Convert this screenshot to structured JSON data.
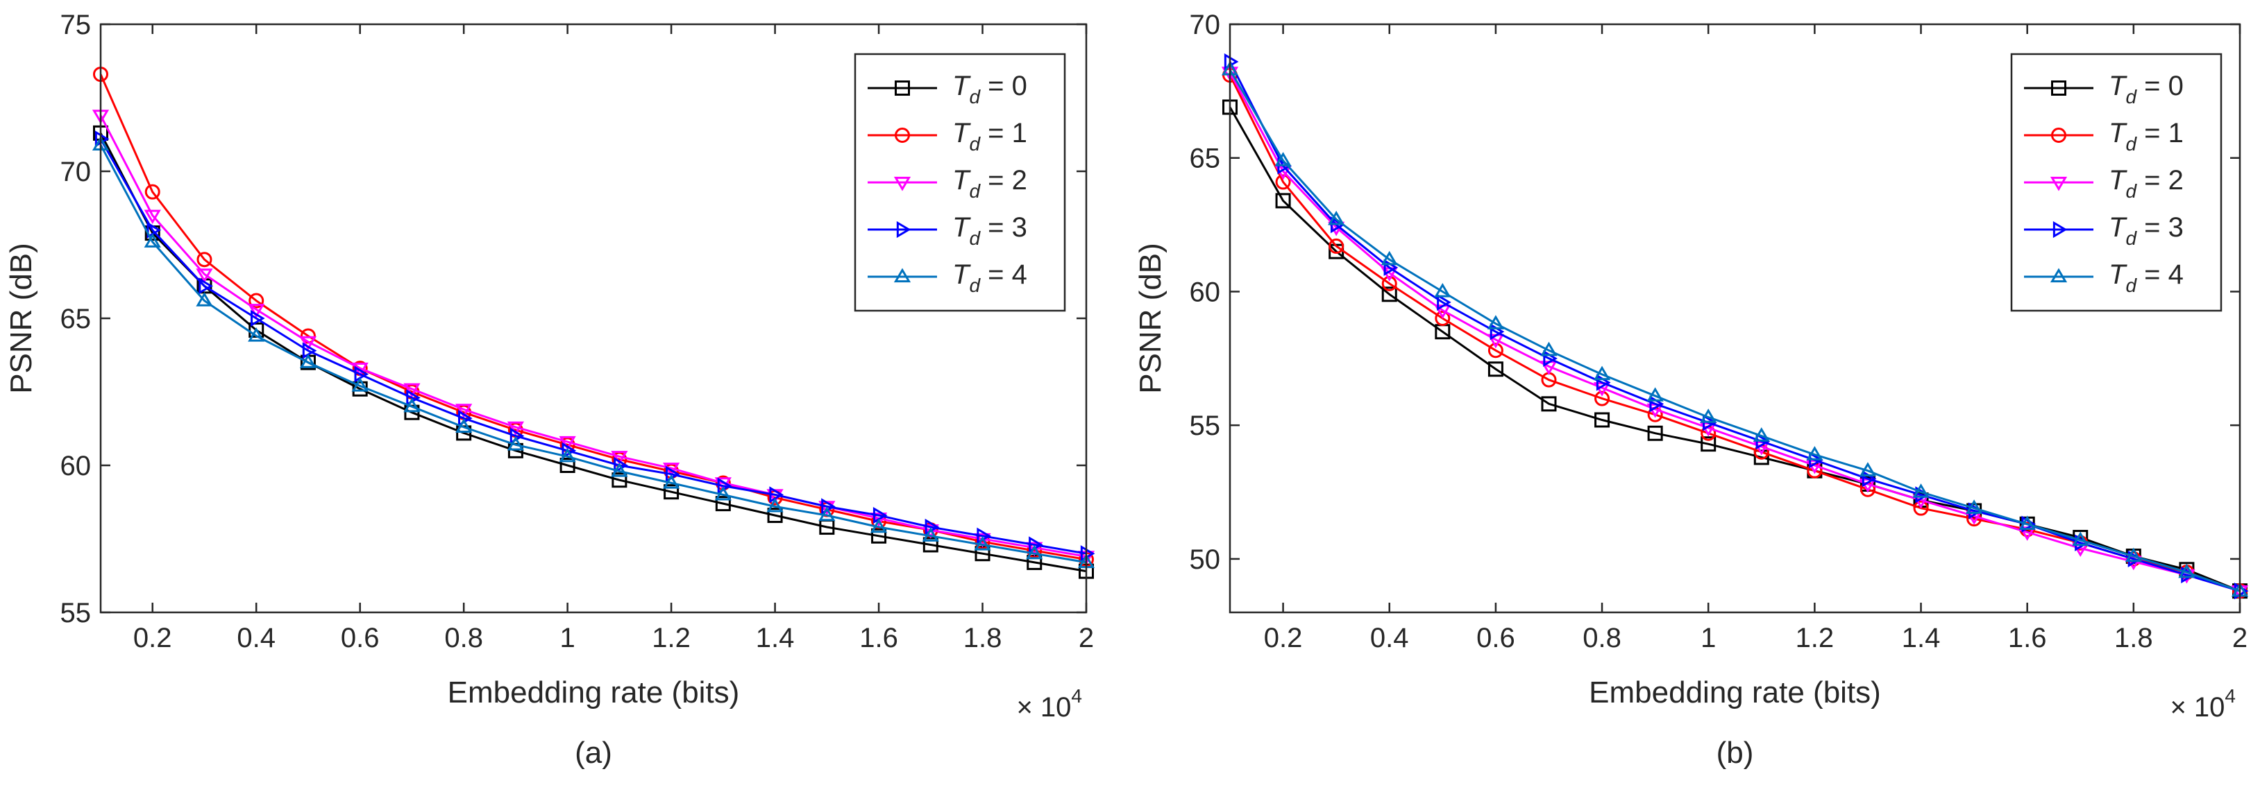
{
  "chart_data": [
    {
      "type": "line",
      "panel": "a",
      "caption": "(a)",
      "xlabel": "Embedding rate (bits)",
      "ylabel": "PSNR (dB)",
      "x_multiplier_label": "× 10",
      "x_multiplier_exp": "4",
      "xlim": [
        0.1,
        2.0
      ],
      "ylim": [
        55,
        75
      ],
      "xticks": [
        0.2,
        0.4,
        0.6,
        0.8,
        1,
        1.2,
        1.4,
        1.6,
        1.8,
        2
      ],
      "xtick_labels": [
        "0.2",
        "0.4",
        "0.6",
        "0.8",
        "1",
        "1.2",
        "1.4",
        "1.6",
        "1.8",
        "2"
      ],
      "yticks": [
        55,
        60,
        65,
        70,
        75
      ],
      "ytick_labels": [
        "55",
        "60",
        "65",
        "70",
        "75"
      ],
      "legend_position": "top-right",
      "x": [
        0.1,
        0.2,
        0.3,
        0.4,
        0.5,
        0.6,
        0.7,
        0.8,
        0.9,
        1.0,
        1.1,
        1.2,
        1.3,
        1.4,
        1.5,
        1.6,
        1.7,
        1.8,
        1.9,
        2.0
      ],
      "series": [
        {
          "name": "Td = 0",
          "label_main": "T",
          "label_sub": "d",
          "label_value": " = 0",
          "color": "#000000",
          "marker": "square",
          "values": [
            71.3,
            67.9,
            66.1,
            64.6,
            63.5,
            62.6,
            61.8,
            61.1,
            60.5,
            60.0,
            59.5,
            59.1,
            58.7,
            58.3,
            57.9,
            57.6,
            57.3,
            57.0,
            56.7,
            56.4
          ]
        },
        {
          "name": "Td = 1",
          "label_main": "T",
          "label_sub": "d",
          "label_value": " = 1",
          "color": "#ff0000",
          "marker": "circle",
          "values": [
            73.3,
            69.3,
            67.0,
            65.6,
            64.4,
            63.3,
            62.5,
            61.8,
            61.2,
            60.7,
            60.2,
            59.8,
            59.4,
            58.9,
            58.5,
            58.1,
            57.8,
            57.4,
            57.1,
            56.8
          ]
        },
        {
          "name": "Td = 2",
          "label_main": "T",
          "label_sub": "d",
          "label_value": " = 2",
          "color": "#ff00ff",
          "marker": "triangle-down",
          "values": [
            71.9,
            68.5,
            66.5,
            65.3,
            64.2,
            63.3,
            62.6,
            61.9,
            61.3,
            60.8,
            60.3,
            59.9,
            59.4,
            59.0,
            58.6,
            58.2,
            57.8,
            57.5,
            57.2,
            56.9
          ]
        },
        {
          "name": "Td = 3",
          "label_main": "T",
          "label_sub": "d",
          "label_value": " = 3",
          "color": "#0000ff",
          "marker": "triangle-right",
          "values": [
            71.1,
            68.0,
            66.1,
            65.0,
            63.9,
            63.1,
            62.3,
            61.6,
            61.0,
            60.5,
            60.0,
            59.7,
            59.3,
            59.0,
            58.6,
            58.3,
            57.9,
            57.6,
            57.3,
            57.0
          ]
        },
        {
          "name": "Td = 4",
          "label_main": "T",
          "label_sub": "d",
          "label_value": " = 4",
          "color": "#0072bd",
          "marker": "triangle-up",
          "values": [
            70.9,
            67.6,
            65.6,
            64.4,
            63.5,
            62.7,
            62.0,
            61.3,
            60.7,
            60.3,
            59.8,
            59.4,
            59.0,
            58.6,
            58.3,
            57.9,
            57.6,
            57.3,
            57.0,
            56.7
          ]
        }
      ]
    },
    {
      "type": "line",
      "panel": "b",
      "caption": "(b)",
      "xlabel": "Embedding rate (bits)",
      "ylabel": "PSNR (dB)",
      "x_multiplier_label": "× 10",
      "x_multiplier_exp": "4",
      "xlim": [
        0.1,
        2.0
      ],
      "ylim": [
        48,
        70
      ],
      "xticks": [
        0.2,
        0.4,
        0.6,
        0.8,
        1,
        1.2,
        1.4,
        1.6,
        1.8,
        2
      ],
      "xtick_labels": [
        "0.2",
        "0.4",
        "0.6",
        "0.8",
        "1",
        "1.2",
        "1.4",
        "1.6",
        "1.8",
        "2"
      ],
      "yticks": [
        50,
        55,
        60,
        65,
        70
      ],
      "ytick_labels": [
        "50",
        "55",
        "60",
        "65",
        "70"
      ],
      "legend_position": "top-right",
      "x": [
        0.1,
        0.2,
        0.3,
        0.4,
        0.5,
        0.6,
        0.7,
        0.8,
        0.9,
        1.0,
        1.1,
        1.2,
        1.3,
        1.4,
        1.5,
        1.6,
        1.7,
        1.8,
        1.9,
        2.0
      ],
      "series": [
        {
          "name": "Td = 0",
          "label_main": "T",
          "label_sub": "d",
          "label_value": " = 0",
          "color": "#000000",
          "marker": "square",
          "values": [
            66.9,
            63.4,
            61.5,
            59.9,
            58.5,
            57.1,
            55.8,
            55.2,
            54.7,
            54.3,
            53.8,
            53.3,
            52.8,
            52.2,
            51.8,
            51.3,
            50.8,
            50.1,
            49.6,
            48.8
          ]
        },
        {
          "name": "Td = 1",
          "label_main": "T",
          "label_sub": "d",
          "label_value": " = 1",
          "color": "#ff0000",
          "marker": "circle",
          "values": [
            68.1,
            64.1,
            61.7,
            60.3,
            59.0,
            57.8,
            56.7,
            56.0,
            55.4,
            54.7,
            54.0,
            53.3,
            52.6,
            51.9,
            51.5,
            51.1,
            50.6,
            50.0,
            49.5,
            48.8
          ]
        },
        {
          "name": "Td = 2",
          "label_main": "T",
          "label_sub": "d",
          "label_value": " = 2",
          "color": "#ff00ff",
          "marker": "triangle-down",
          "values": [
            68.2,
            64.5,
            62.4,
            60.7,
            59.3,
            58.2,
            57.2,
            56.4,
            55.6,
            54.9,
            54.2,
            53.5,
            52.8,
            52.2,
            51.6,
            51.0,
            50.4,
            49.9,
            49.4,
            48.8
          ]
        },
        {
          "name": "Td = 3",
          "label_main": "T",
          "label_sub": "d",
          "label_value": " = 3",
          "color": "#0000ff",
          "marker": "triangle-right",
          "values": [
            68.6,
            64.7,
            62.5,
            60.9,
            59.6,
            58.5,
            57.5,
            56.6,
            55.8,
            55.1,
            54.4,
            53.7,
            53.0,
            52.4,
            51.8,
            51.3,
            50.6,
            50.0,
            49.4,
            48.8
          ]
        },
        {
          "name": "Td = 4",
          "label_main": "T",
          "label_sub": "d",
          "label_value": " = 4",
          "color": "#0072bd",
          "marker": "triangle-up",
          "values": [
            68.3,
            64.9,
            62.7,
            61.2,
            60.0,
            58.8,
            57.8,
            56.9,
            56.1,
            55.3,
            54.6,
            53.9,
            53.3,
            52.5,
            51.9,
            51.3,
            50.7,
            50.1,
            49.5,
            48.8
          ]
        }
      ]
    }
  ]
}
